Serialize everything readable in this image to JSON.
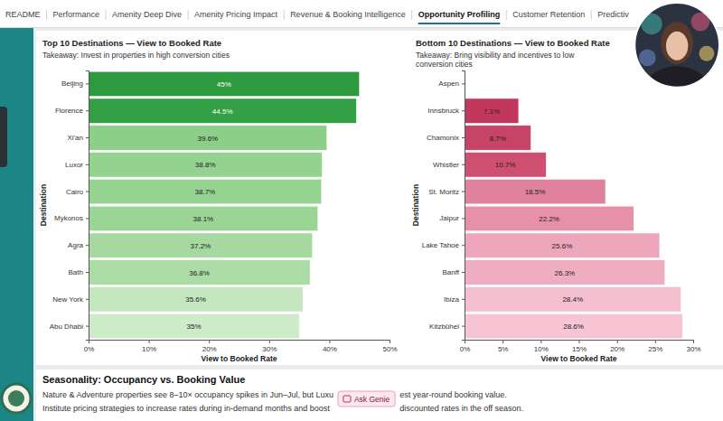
{
  "tabs": [
    {
      "label": "README"
    },
    {
      "label": "Performance"
    },
    {
      "label": "Amenity Deep Dive"
    },
    {
      "label": "Amenity Pricing Impact"
    },
    {
      "label": "Revenue & Booking Intelligence"
    },
    {
      "label": "Opportunity Profiling",
      "active": true
    },
    {
      "label": "Customer Retention"
    },
    {
      "label": "Predictiv"
    }
  ],
  "chart_data": [
    {
      "type": "bar",
      "orientation": "horizontal",
      "title": "Top 10 Destinations — View to Booked Rate",
      "subtitle": "Takeaway: Invest in properties in high conversion cities",
      "x_label": "View to Booked Rate",
      "y_label": "Destination",
      "categories": [
        "Beijing",
        "Florence",
        "Xi'an",
        "Luxor",
        "Cairo",
        "Mykonos",
        "Agra",
        "Bath",
        "New York",
        "Abu Dhabi"
      ],
      "values": [
        45,
        44.5,
        39.6,
        38.8,
        38.7,
        38.1,
        37.2,
        36.8,
        35.6,
        35
      ],
      "value_labels": [
        "45%",
        "44.5%",
        "39.6%",
        "38.8%",
        "38.7%",
        "38.1%",
        "37.2%",
        "36.8%",
        "35.6%",
        "35%"
      ],
      "colors": [
        "#2e9a3f",
        "#34a045",
        "#8ccf88",
        "#93d28f",
        "#95d391",
        "#9ad595",
        "#a5d9a0",
        "#abdca6",
        "#c4e7bf",
        "#cdebc8"
      ],
      "xlim": [
        0,
        50
      ],
      "xticks": [
        {
          "value": 0,
          "label": "0%"
        },
        {
          "value": 10,
          "label": "10%"
        },
        {
          "value": 20,
          "label": "20%"
        },
        {
          "value": 30,
          "label": "30%"
        },
        {
          "value": 40,
          "label": "40%"
        },
        {
          "value": 50,
          "label": "50%"
        }
      ],
      "data_labels": true,
      "grid": false
    },
    {
      "type": "bar",
      "orientation": "horizontal",
      "title": "Bottom 10 Destinations — View to Booked Rate",
      "subtitle": "Takeaway: Bring visibility and incentives to low conversion cities",
      "x_label": "View to Booked Rate",
      "y_label": "Destination",
      "categories": [
        "Aspen",
        "Innsbruck",
        "Chamonix",
        "Whistler",
        "St. Moritz",
        "Jaipur",
        "Lake Tahoe",
        "Banff",
        "Ibiza",
        "Kitzbühel"
      ],
      "values": [
        0,
        7.1,
        8.7,
        10.7,
        18.5,
        22.2,
        25.6,
        26.3,
        28.4,
        28.6
      ],
      "value_labels": [
        null,
        "7.1%",
        "8.7%",
        "10.7%",
        "18.5%",
        "22.2%",
        "25.6%",
        "26.3%",
        "28.4%",
        "28.6%"
      ],
      "colors": [
        "#b8284f",
        "#c2385d",
        "#c84466",
        "#cf4f71",
        "#e0829d",
        "#e690aa",
        "#eda6bb",
        "#efadc1",
        "#f4bfcf",
        "#f6c4d3"
      ],
      "xlim": [
        0,
        30
      ],
      "xticks": [
        {
          "value": 0,
          "label": "0%"
        },
        {
          "value": 5,
          "label": "5%"
        },
        {
          "value": 10,
          "label": "10%"
        },
        {
          "value": 15,
          "label": "15%"
        },
        {
          "value": 20,
          "label": "20%"
        },
        {
          "value": 25,
          "label": "25%"
        },
        {
          "value": 30,
          "label": "30%"
        }
      ],
      "data_labels": true,
      "grid": false
    }
  ],
  "section": {
    "title": "Seasonality: Occupancy vs. Booking Value",
    "lines": [
      [
        "Nature & Adventure properties see 8–10× occupancy spikes in Jun–Jul, but Luxu",
        "est year-round booking value."
      ],
      [
        "Institute pricing strategies to increase rates during in-demand months and boost",
        "discounted rates in the off season."
      ]
    ]
  },
  "button": {
    "label": "Ask Genie"
  }
}
